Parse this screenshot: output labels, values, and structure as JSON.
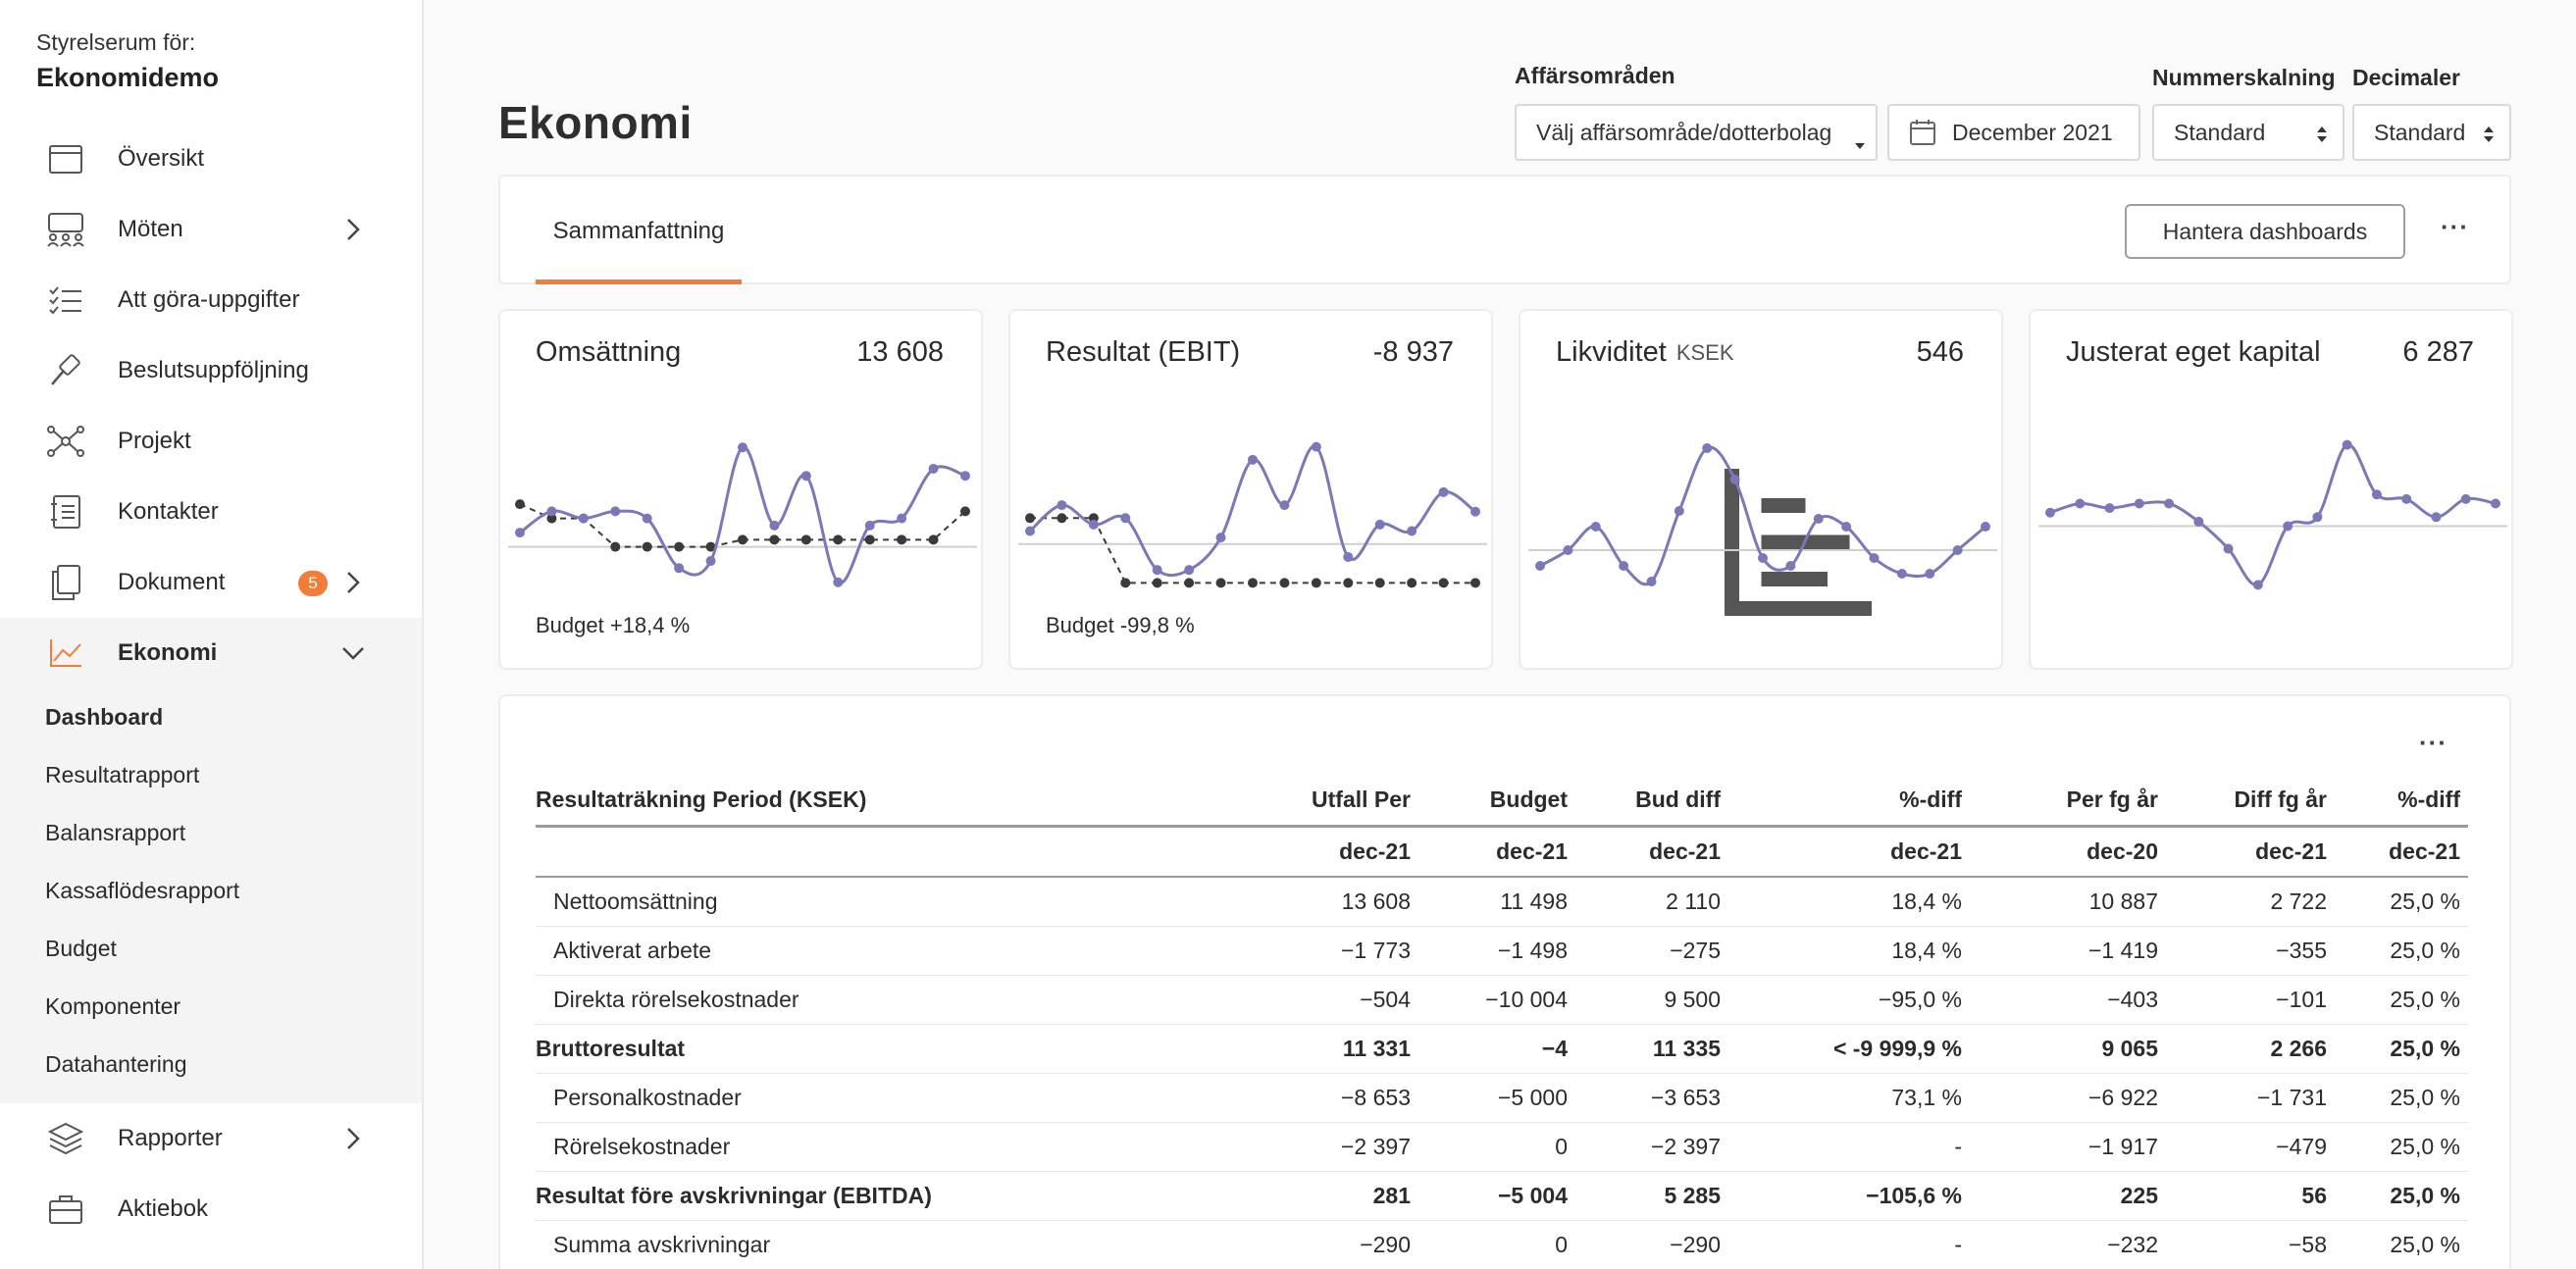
{
  "sidebar": {
    "org_label": "Styrelserum för:",
    "org_name": "Ekonomidemo",
    "items": [
      {
        "label": "Översikt",
        "icon": "calendar-icon"
      },
      {
        "label": "Möten",
        "icon": "people-icon"
      },
      {
        "label": "Att göra-uppgifter",
        "icon": "checklist-icon"
      },
      {
        "label": "Beslutsuppföljning",
        "icon": "gavel-icon"
      },
      {
        "label": "Projekt",
        "icon": "network-icon"
      },
      {
        "label": "Kontakter",
        "icon": "contacts-icon"
      },
      {
        "label": "Dokument",
        "icon": "documents-icon",
        "badge": "5"
      },
      {
        "label": "Ekonomi",
        "icon": "chart-line-icon"
      },
      {
        "label": "Rapporter",
        "icon": "layers-icon"
      },
      {
        "label": "Aktiebok",
        "icon": "briefcase-icon"
      }
    ],
    "ekonomi_sub": [
      "Dashboard",
      "Resultatrapport",
      "Balansrapport",
      "Kassaflödesrapport",
      "Budget",
      "Komponenter",
      "Datahantering"
    ]
  },
  "header": {
    "title": "Ekonomi",
    "affarsomraden_label": "Affärsområden",
    "affarsomraden_value": "Välj affärsområde/dotterbolag",
    "date_value": "December 2021",
    "nummerskalning_label": "Nummerskalning",
    "nummerskalning_value": "Standard",
    "decimaler_label": "Decimaler",
    "decimaler_value": "Standard"
  },
  "tabs": {
    "active": "Sammanfattning",
    "manage_button": "Hantera dashboards",
    "more": "···"
  },
  "colors": {
    "accent": "#f07e3a",
    "series": "#7b78b8",
    "budget": "#3a3a3a"
  },
  "kpis": [
    {
      "title": "Omsättning",
      "value": "13 608",
      "budget": "Budget +18,4 %",
      "chart_data": {
        "type": "line",
        "series": [
          {
            "values": [
              2,
              5,
              4,
              5,
              4,
              -3,
              -2,
              14,
              3,
              10,
              -5,
              3,
              4,
              11,
              10
            ]
          }
        ],
        "budget": [
          6,
          4,
          4,
          0,
          0,
          0,
          0,
          1,
          1,
          1,
          1,
          1,
          1,
          1,
          5
        ]
      }
    },
    {
      "title": "Resultat (EBIT)",
      "value": "-8 937",
      "budget": "Budget -99,8 %",
      "chart_data": {
        "type": "line",
        "series": [
          {
            "values": [
              2,
              6,
              3,
              4,
              -4,
              -4,
              1,
              13,
              6,
              15,
              -2,
              3,
              2,
              8,
              5
            ]
          }
        ],
        "budget": [
          4,
          4,
          4,
          -6,
          -6,
          -6,
          -6,
          -6,
          -6,
          -6,
          -6,
          -6,
          -6,
          -6,
          -6
        ]
      }
    },
    {
      "title": "Likviditet",
      "unit": "KSEK",
      "value": "546",
      "chart_data": {
        "type": "line",
        "series": [
          {
            "values": [
              -2,
              0,
              3,
              -2,
              -4,
              5,
              13,
              9,
              -1,
              -2,
              4,
              3,
              -1,
              -3,
              -3,
              0,
              3
            ]
          }
        ]
      }
    },
    {
      "title": "Justerat eget kapital",
      "value": "6 287",
      "chart_data": {
        "type": "line",
        "series": [
          {
            "values": [
              3,
              5,
              4,
              5,
              5,
              1,
              -5,
              -13,
              0,
              2,
              18,
              7,
              6,
              2,
              6,
              5
            ]
          }
        ]
      }
    }
  ],
  "table": {
    "columns": [
      "Resultaträkning Period (KSEK)",
      "Utfall Per",
      "Budget",
      "Bud diff",
      "%-diff",
      "Per fg år",
      "Diff fg år",
      "%-diff"
    ],
    "periods": [
      "",
      "dec-21",
      "dec-21",
      "dec-21",
      "dec-21",
      "dec-20",
      "dec-21",
      "dec-21"
    ],
    "rows": [
      {
        "bold": false,
        "cells": [
          "Nettoomsättning",
          "13 608",
          "11 498",
          "2 110",
          "18,4 %",
          "10 887",
          "2 722",
          "25,0 %"
        ]
      },
      {
        "bold": false,
        "cells": [
          "Aktiverat arbete",
          "−1 773",
          "−1 498",
          "−275",
          "18,4 %",
          "−1 419",
          "−355",
          "25,0 %"
        ]
      },
      {
        "bold": false,
        "cells": [
          "Direkta rörelsekostnader",
          "−504",
          "−10 004",
          "9 500",
          "−95,0 %",
          "−403",
          "−101",
          "25,0 %"
        ]
      },
      {
        "bold": true,
        "cells": [
          "Bruttoresultat",
          "11 331",
          "−4",
          "11 335",
          "< -9 999,9 %",
          "9 065",
          "2 266",
          "25,0 %"
        ]
      },
      {
        "bold": false,
        "cells": [
          "Personalkostnader",
          "−8 653",
          "−5 000",
          "−3 653",
          "73,1 %",
          "−6 922",
          "−1 731",
          "25,0 %"
        ]
      },
      {
        "bold": false,
        "cells": [
          "Rörelsekostnader",
          "−2 397",
          "0",
          "−2 397",
          "-",
          "−1 917",
          "−479",
          "25,0 %"
        ]
      },
      {
        "bold": true,
        "cells": [
          "Resultat före avskrivningar (EBITDA)",
          "281",
          "−5 004",
          "5 285",
          "−105,6 %",
          "225",
          "56",
          "25,0 %"
        ]
      },
      {
        "bold": false,
        "cells": [
          "Summa avskrivningar",
          "−290",
          "0",
          "−290",
          "-",
          "−232",
          "−58",
          "25,0 %"
        ]
      }
    ]
  }
}
